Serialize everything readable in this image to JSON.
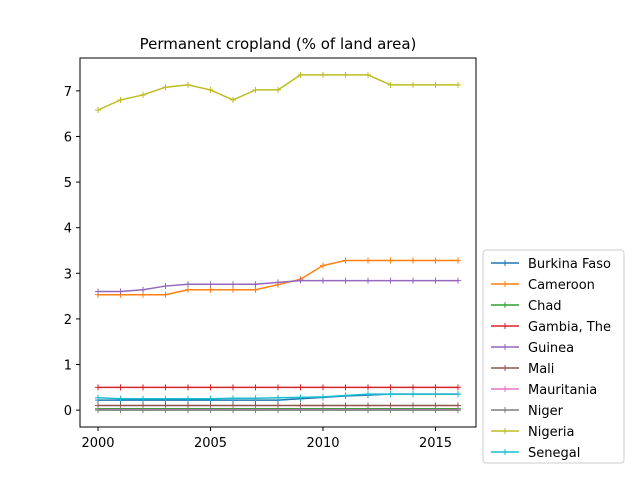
{
  "chart_data": {
    "type": "line",
    "title": "Permanent cropland (% of land area)",
    "xlabel": "",
    "ylabel": "",
    "x": [
      2000,
      2001,
      2002,
      2003,
      2004,
      2005,
      2006,
      2007,
      2008,
      2009,
      2010,
      2011,
      2012,
      2013,
      2014,
      2015,
      2016
    ],
    "xlim": [
      1999.2,
      2016.8
    ],
    "ylim": [
      -0.37,
      7.72
    ],
    "xticks": [
      2000,
      2005,
      2010,
      2015
    ],
    "yticks": [
      0,
      1,
      2,
      3,
      4,
      5,
      6,
      7
    ],
    "legend_position": "outside-right-bottom",
    "series": [
      {
        "name": "Burkina Faso",
        "color": "#1f77b4",
        "values": [
          0.22,
          0.22,
          0.22,
          0.22,
          0.22,
          0.22,
          0.22,
          0.22,
          0.22,
          0.25,
          0.28,
          0.31,
          0.33,
          0.35,
          0.35,
          0.35,
          0.35
        ]
      },
      {
        "name": "Cameroon",
        "color": "#ff7f0e",
        "values": [
          2.53,
          2.53,
          2.53,
          2.53,
          2.64,
          2.64,
          2.64,
          2.64,
          2.75,
          2.87,
          3.17,
          3.28,
          3.28,
          3.28,
          3.28,
          3.28,
          3.28
        ]
      },
      {
        "name": "Chad",
        "color": "#2ca02c",
        "values": [
          0.03,
          0.03,
          0.03,
          0.03,
          0.03,
          0.03,
          0.03,
          0.03,
          0.03,
          0.03,
          0.03,
          0.03,
          0.03,
          0.03,
          0.03,
          0.03,
          0.03
        ]
      },
      {
        "name": "Gambia, The",
        "color": "#d62728",
        "values": [
          0.5,
          0.5,
          0.5,
          0.5,
          0.5,
          0.5,
          0.5,
          0.5,
          0.5,
          0.5,
          0.5,
          0.5,
          0.5,
          0.5,
          0.5,
          0.5,
          0.5
        ]
      },
      {
        "name": "Guinea",
        "color": "#9467bd",
        "values": [
          2.6,
          2.6,
          2.64,
          2.72,
          2.76,
          2.76,
          2.76,
          2.76,
          2.8,
          2.84,
          2.84,
          2.84,
          2.84,
          2.84,
          2.84,
          2.84,
          2.84
        ]
      },
      {
        "name": "Mali",
        "color": "#8c564b",
        "values": [
          0.1,
          0.1,
          0.1,
          0.1,
          0.1,
          0.1,
          0.1,
          0.1,
          0.1,
          0.1,
          0.1,
          0.1,
          0.1,
          0.1,
          0.1,
          0.1,
          0.1
        ]
      },
      {
        "name": "Mauritania",
        "color": "#e377c2",
        "values": [
          0.01,
          0.01,
          0.01,
          0.01,
          0.01,
          0.01,
          0.01,
          0.01,
          0.01,
          0.01,
          0.01,
          0.01,
          0.01,
          0.01,
          0.01,
          0.01,
          0.01
        ]
      },
      {
        "name": "Niger",
        "color": "#7f7f7f",
        "values": [
          0.0,
          0.0,
          0.0,
          0.0,
          0.0,
          0.0,
          0.0,
          0.0,
          0.0,
          0.0,
          0.0,
          0.0,
          0.0,
          0.0,
          0.0,
          0.0,
          0.0
        ]
      },
      {
        "name": "Nigeria",
        "color": "#bcbd22",
        "values": [
          6.58,
          6.8,
          6.91,
          7.08,
          7.13,
          7.02,
          6.8,
          7.02,
          7.02,
          7.35,
          7.35,
          7.35,
          7.35,
          7.13,
          7.13,
          7.13,
          7.13
        ]
      },
      {
        "name": "Senegal",
        "color": "#17becf",
        "values": [
          0.27,
          0.25,
          0.25,
          0.25,
          0.25,
          0.25,
          0.26,
          0.26,
          0.27,
          0.28,
          0.29,
          0.32,
          0.35,
          0.35,
          0.35,
          0.35,
          0.35
        ]
      }
    ]
  }
}
